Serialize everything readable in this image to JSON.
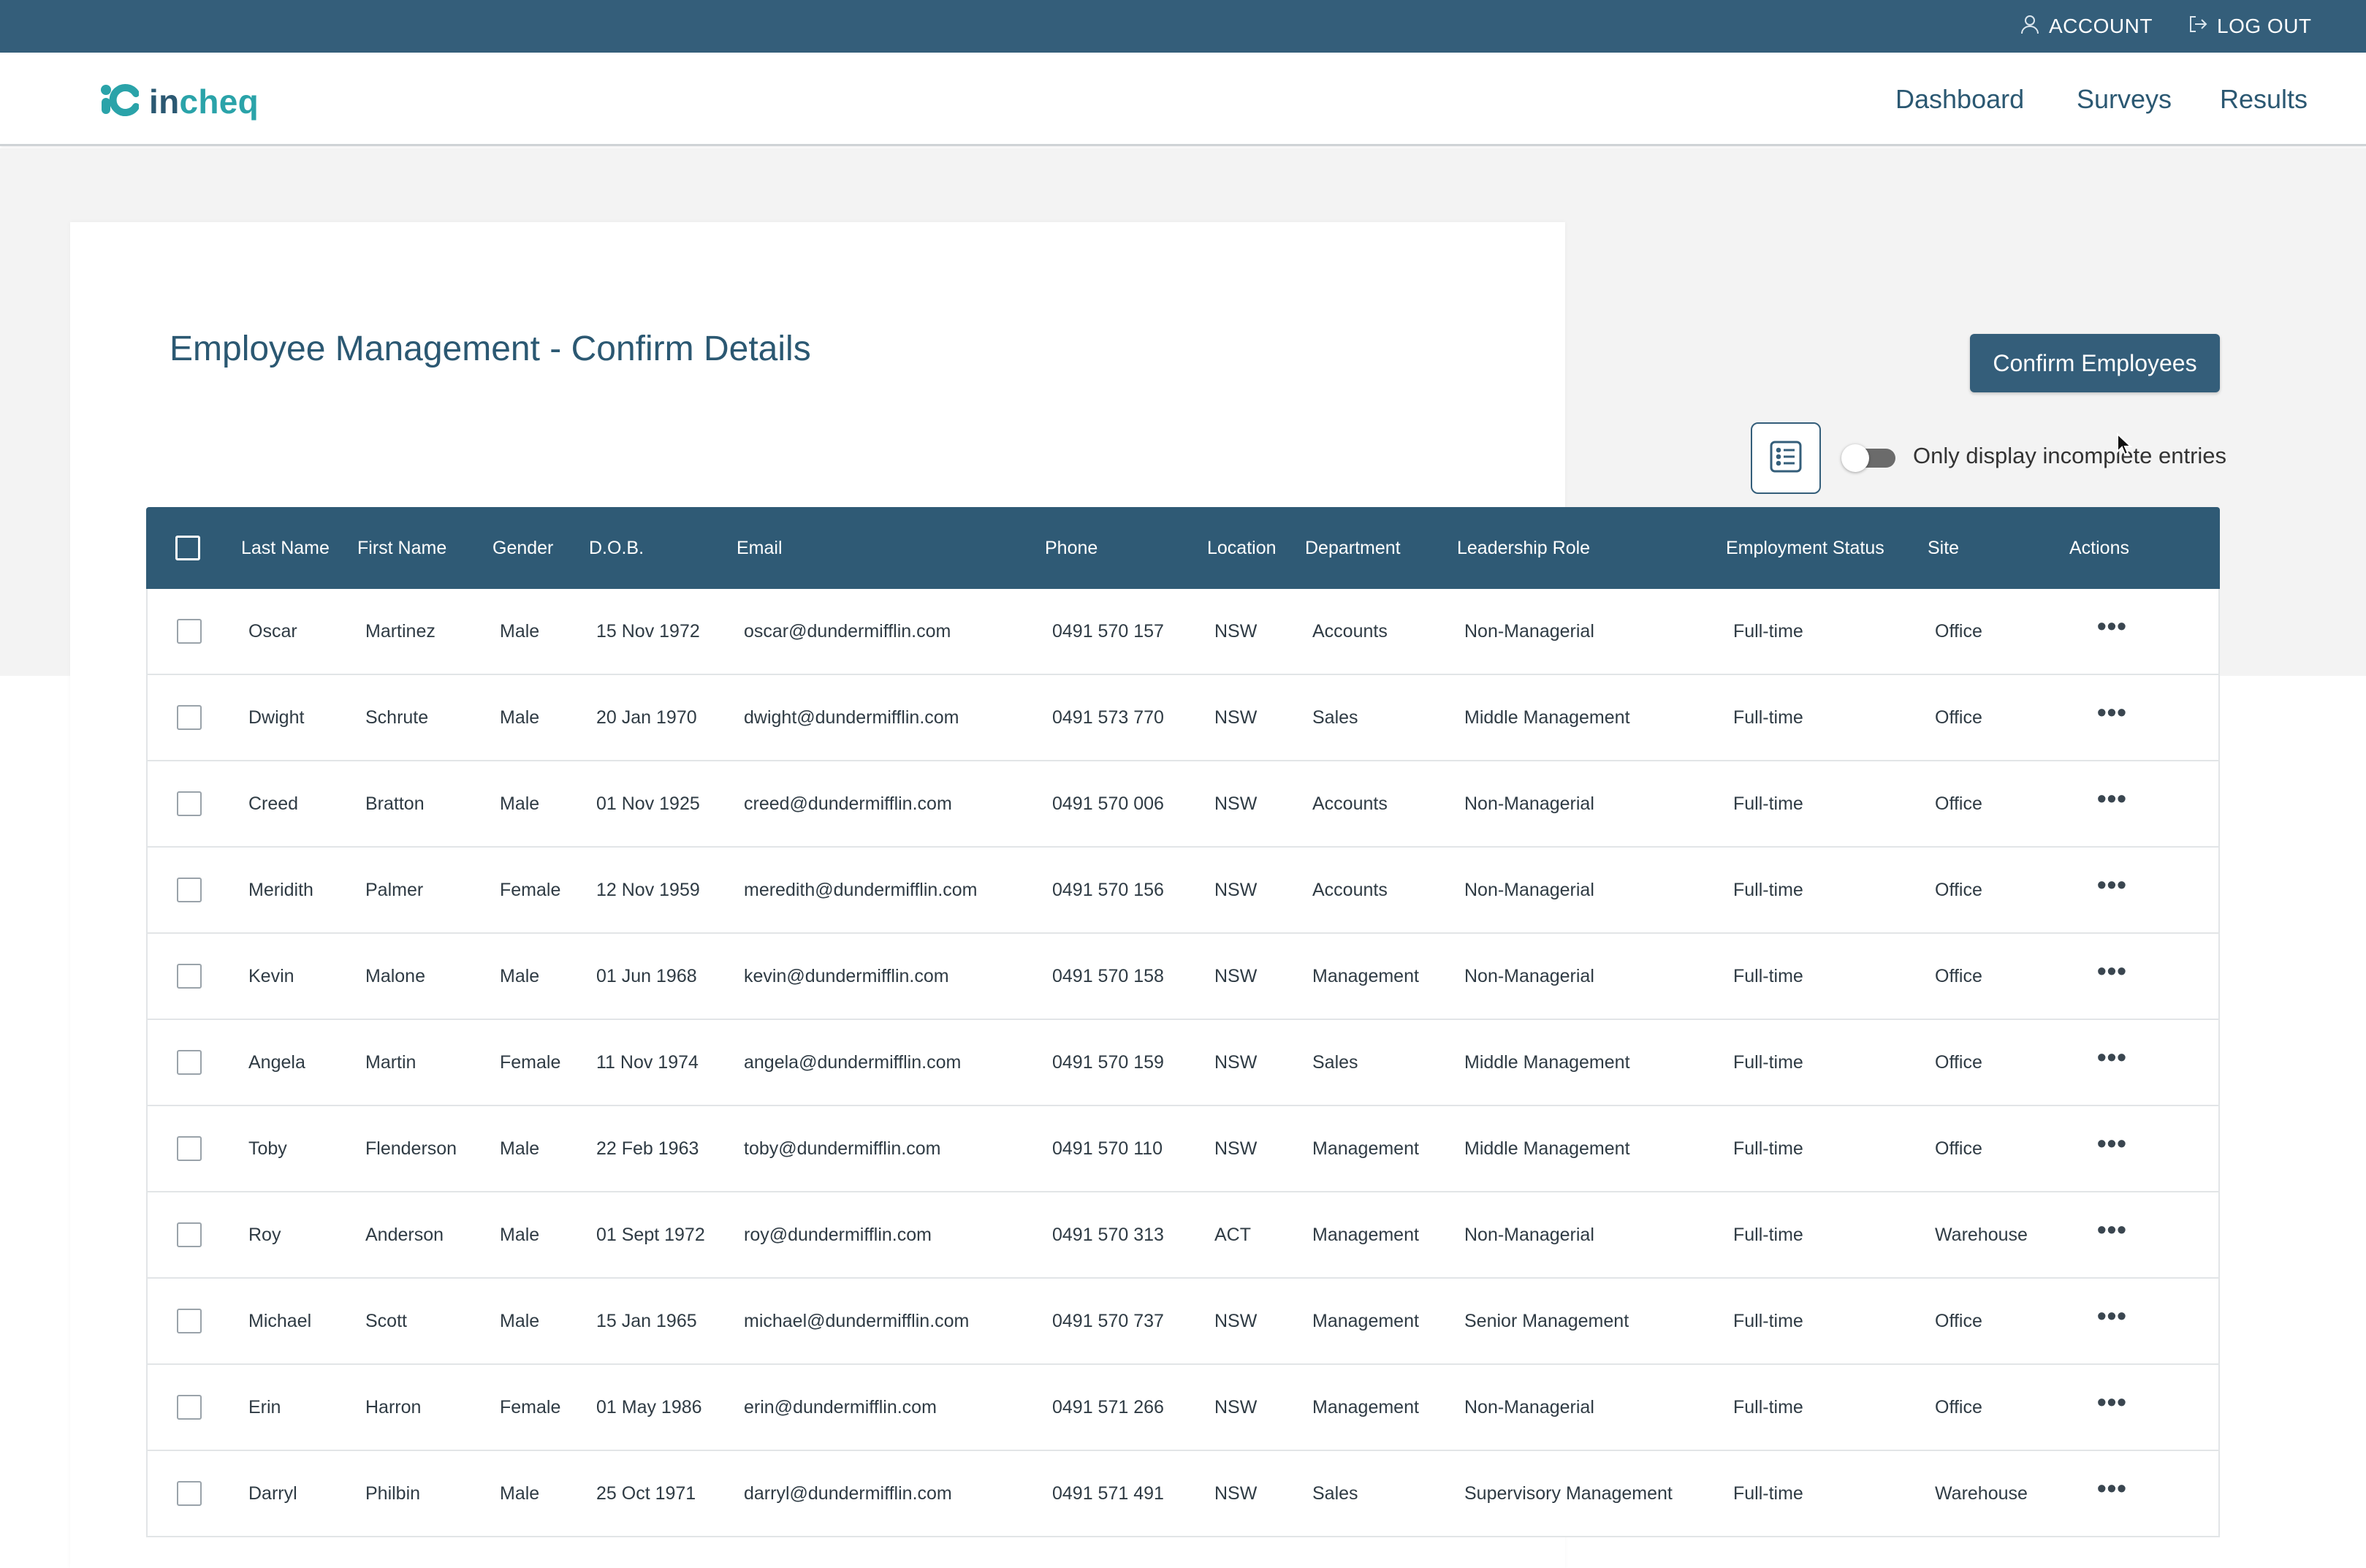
{
  "topbar": {
    "account_label": "ACCOUNT",
    "logout_label": "LOG OUT"
  },
  "header": {
    "logo": {
      "prefix": "in",
      "suffix": "cheq"
    },
    "nav": [
      {
        "label": "Dashboard"
      },
      {
        "label": "Surveys"
      },
      {
        "label": "Results"
      }
    ]
  },
  "page": {
    "title": "Employee Management - Confirm Details",
    "confirm_button": "Confirm Employees",
    "filter_toggle_label": "Only display incomplete entries",
    "filter_toggle_on": false
  },
  "table": {
    "columns": [
      "Last Name",
      "First Name",
      "Gender",
      "D.O.B.",
      "Email",
      "Phone",
      "Location",
      "Department",
      "Leadership Role",
      "Employment Status",
      "Site",
      "Actions"
    ],
    "rows": [
      [
        "Oscar",
        "Martinez",
        "Male",
        "15 Nov 1972",
        "oscar@dundermifflin.com",
        "0491 570 157",
        "NSW",
        "Accounts",
        "Non-Managerial",
        "Full-time",
        "Office"
      ],
      [
        "Dwight",
        "Schrute",
        "Male",
        "20 Jan 1970",
        "dwight@dundermifflin.com",
        "0491 573 770",
        "NSW",
        "Sales",
        "Middle Management",
        "Full-time",
        "Office"
      ],
      [
        "Creed",
        "Bratton",
        "Male",
        "01 Nov 1925",
        "creed@dundermifflin.com",
        "0491 570 006",
        "NSW",
        "Accounts",
        "Non-Managerial",
        "Full-time",
        "Office"
      ],
      [
        "Meridith",
        "Palmer",
        "Female",
        "12 Nov 1959",
        "meredith@dundermifflin.com",
        "0491 570 156",
        "NSW",
        "Accounts",
        "Non-Managerial",
        "Full-time",
        "Office"
      ],
      [
        "Kevin",
        "Malone",
        "Male",
        "01 Jun 1968",
        "kevin@dundermifflin.com",
        "0491 570 158",
        "NSW",
        "Management",
        "Non-Managerial",
        "Full-time",
        "Office"
      ],
      [
        "Angela",
        "Martin",
        "Female",
        "11 Nov 1974",
        "angela@dundermifflin.com",
        "0491 570 159",
        "NSW",
        "Sales",
        "Middle Management",
        "Full-time",
        "Office"
      ],
      [
        "Toby",
        "Flenderson",
        "Male",
        "22 Feb 1963",
        "toby@dundermifflin.com",
        "0491 570 110",
        "NSW",
        "Management",
        "Middle Management",
        "Full-time",
        "Office"
      ],
      [
        "Roy",
        "Anderson",
        "Male",
        "01 Sept 1972",
        "roy@dundermifflin.com",
        "0491 570 313",
        "ACT",
        "Management",
        "Non-Managerial",
        "Full-time",
        "Warehouse"
      ],
      [
        "Michael",
        "Scott",
        "Male",
        "15 Jan 1965",
        "michael@dundermifflin.com",
        "0491 570 737",
        "NSW",
        "Management",
        "Senior Management",
        "Full-time",
        "Office"
      ],
      [
        "Erin",
        "Harron",
        "Female",
        "01 May 1986",
        "erin@dundermifflin.com",
        "0491 571 266",
        "NSW",
        "Management",
        "Non-Managerial",
        "Full-time",
        "Office"
      ],
      [
        "Darryl",
        "Philbin",
        "Male",
        "25 Oct 1971",
        "darryl@dundermifflin.com",
        "0491 571 491",
        "NSW",
        "Sales",
        "Supervisory Management",
        "Full-time",
        "Warehouse"
      ]
    ],
    "row_action_glyph": "•••"
  },
  "colors": {
    "topbar": "#345e7a",
    "table_header": "#2f5a75",
    "brand_text": "#2b5872",
    "brand_accent": "#2aa3a9",
    "page_background": "#f3f3f3"
  },
  "icons": {
    "account": "user-icon",
    "logout": "logout-icon",
    "logo": "incheq-logo-icon",
    "view_toggle": "list-view-icon",
    "row_actions": "more-horizontal-icon"
  }
}
